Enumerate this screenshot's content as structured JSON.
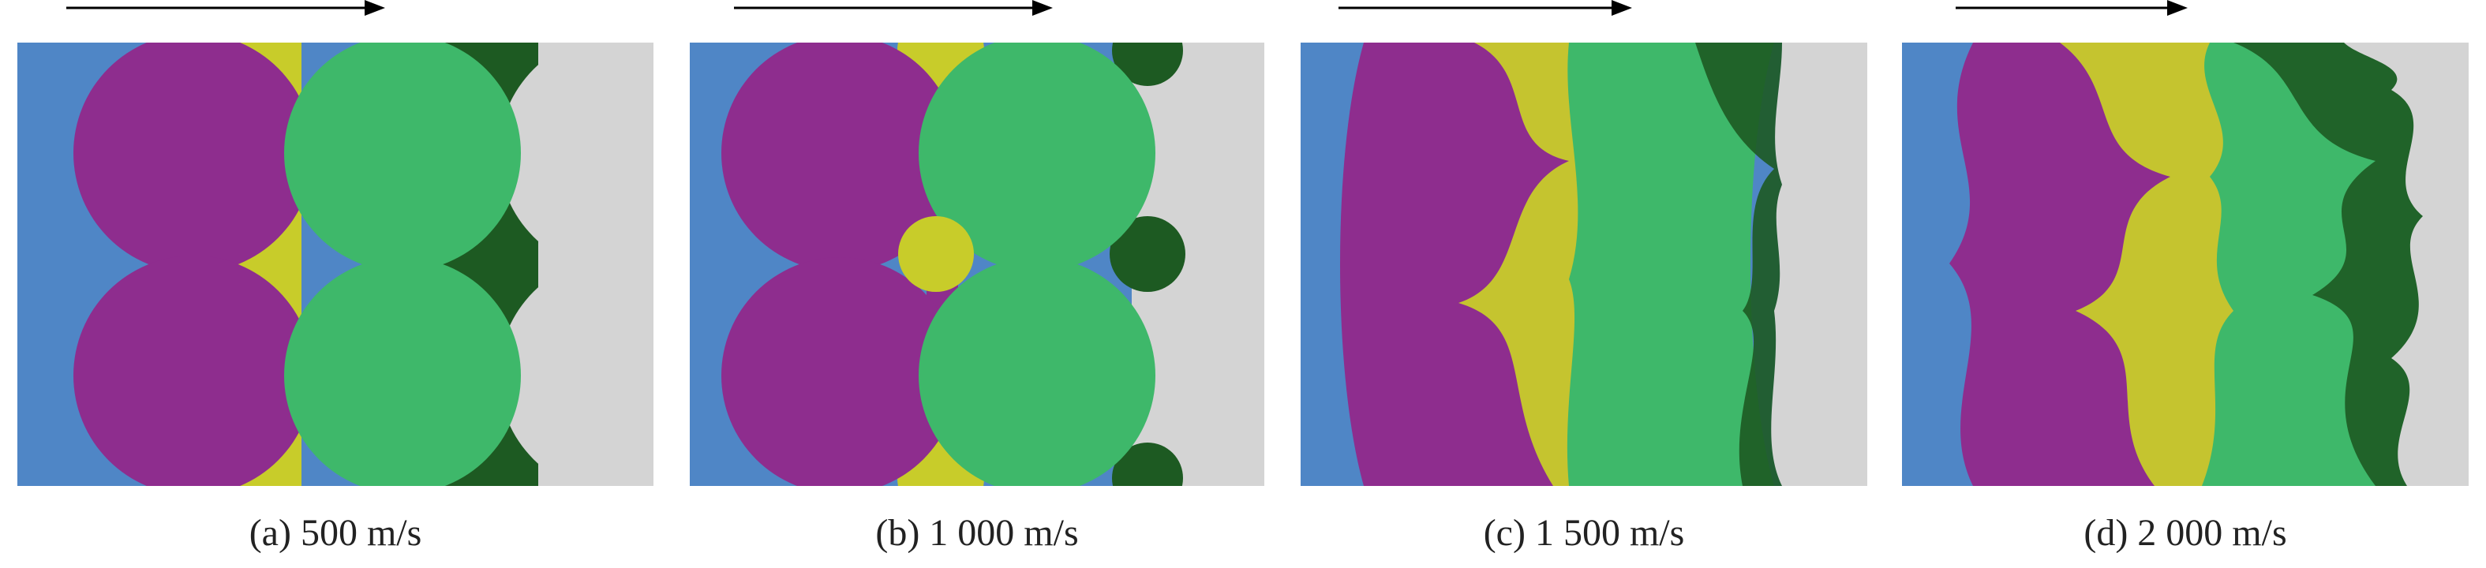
{
  "colors": {
    "background": "#ffffff",
    "blue": "#4f86c6",
    "purple": "#8e2d8e",
    "yellow": "#c8cc2a",
    "green": "#3eb86a",
    "dark_green": "#1d5a22",
    "light_gray": "#d4d4d4",
    "arrow": "#000000"
  },
  "panels": [
    {
      "caption": "(a) 500 m/s"
    },
    {
      "caption": "(b) 1 000 m/s"
    },
    {
      "caption": "(c) 1 500 m/s"
    },
    {
      "caption": "(d) 2 000 m/s"
    }
  ]
}
